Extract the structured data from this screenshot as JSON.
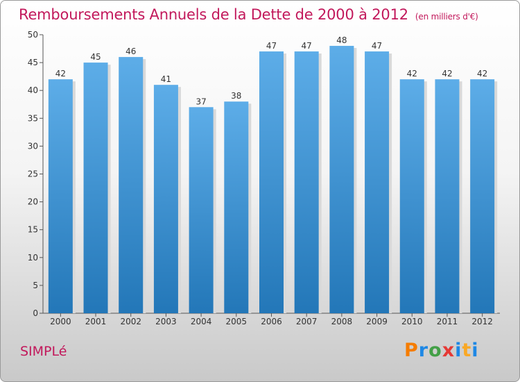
{
  "header": {
    "title": "Remboursements Annuels de la Dette de 2000 à 2012",
    "unit": "(en milliers d'€)"
  },
  "footer": {
    "commune": "SIMPLé",
    "logo_text": "Proxiti"
  },
  "colors": {
    "title": "#c2185b",
    "bar_top": "#5dade8",
    "bar_bottom": "#2377b8",
    "bar_shadow": "#d9d9d9"
  },
  "chart_data": {
    "type": "bar",
    "title": "Remboursements Annuels de la Dette de 2000 à 2012",
    "subtitle": "(en milliers d'€)",
    "categories": [
      "2000",
      "2001",
      "2002",
      "2003",
      "2004",
      "2005",
      "2006",
      "2007",
      "2008",
      "2009",
      "2010",
      "2011",
      "2012"
    ],
    "values": [
      42,
      45,
      46,
      41,
      37,
      38,
      47,
      47,
      48,
      47,
      42,
      42,
      42
    ],
    "ylim": [
      0,
      50
    ],
    "yticks": [
      0,
      5,
      10,
      15,
      20,
      25,
      30,
      35,
      40,
      45,
      50
    ],
    "xlabel": "",
    "ylabel": "",
    "data_labels": true,
    "grid": false,
    "legend": "none"
  }
}
